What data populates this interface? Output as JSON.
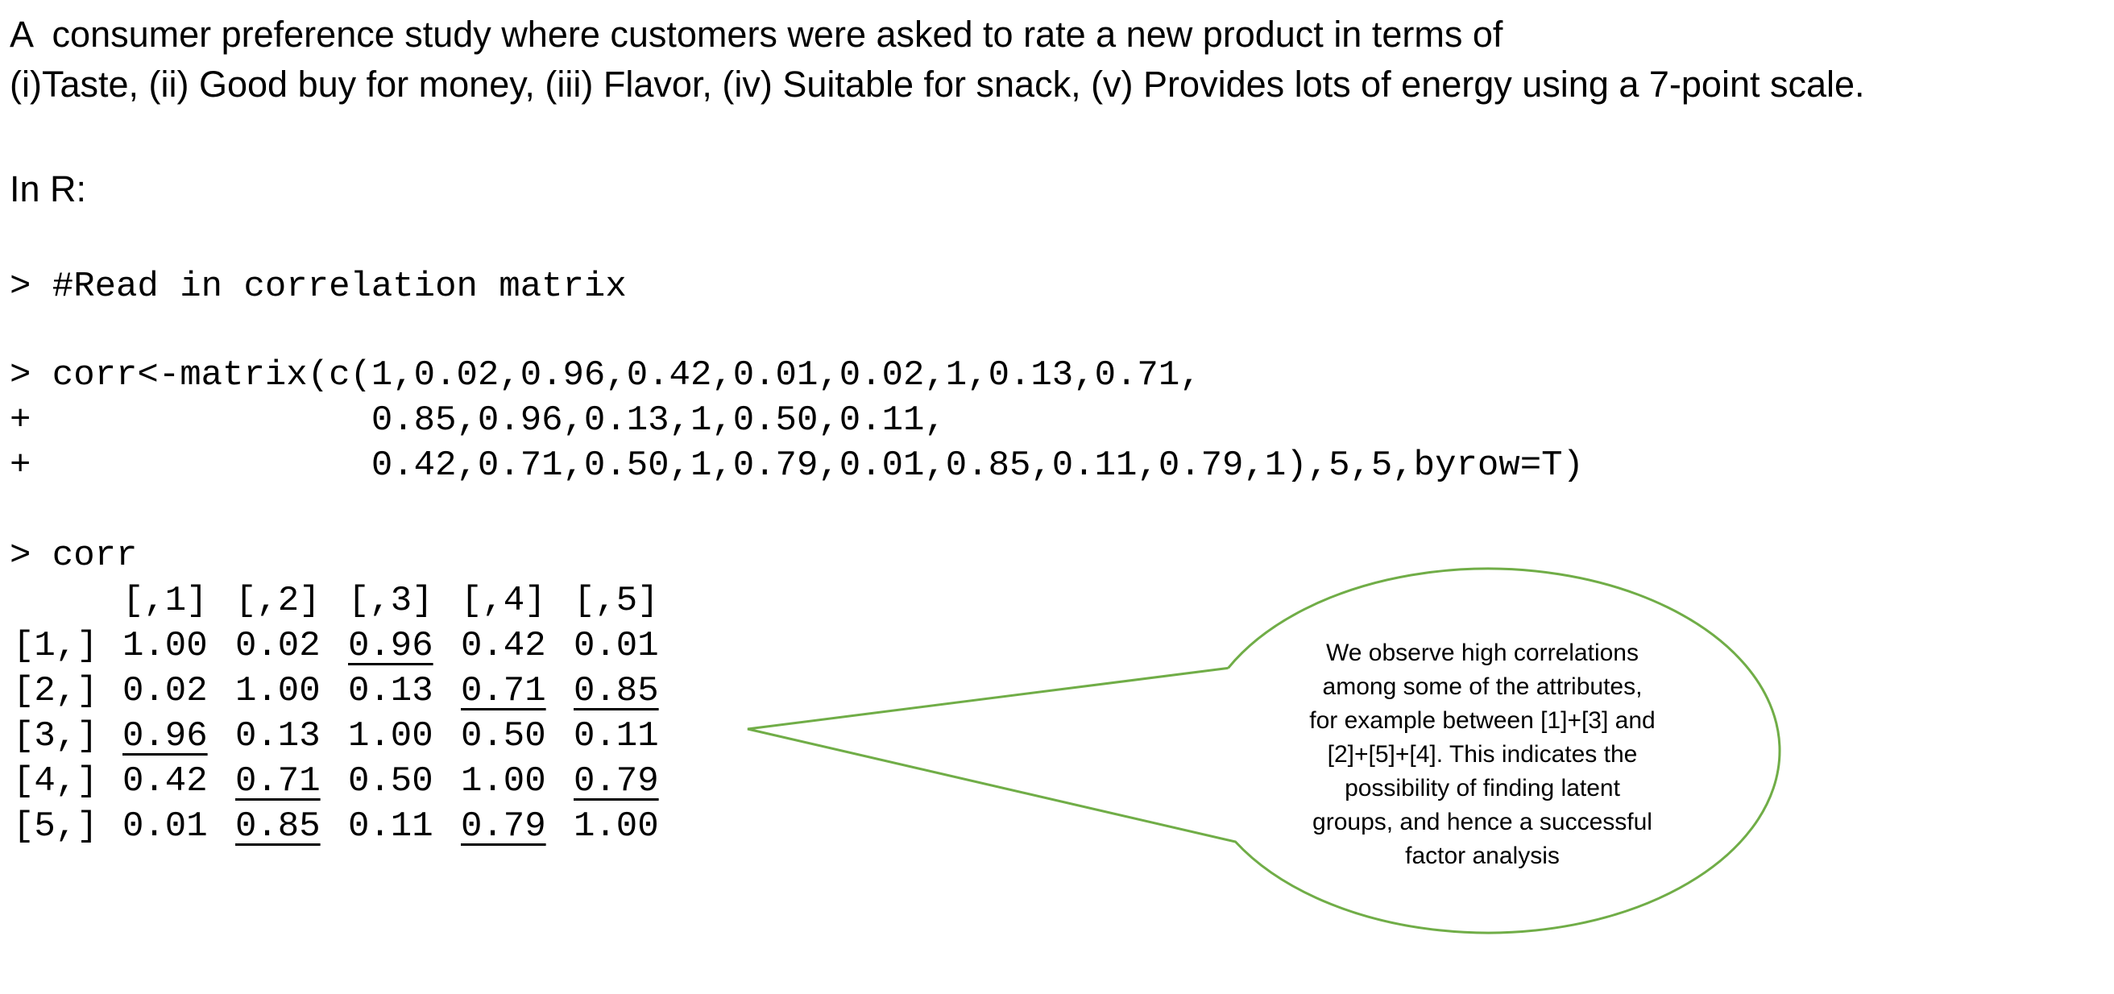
{
  "intro": {
    "line1": "A  consumer preference study where customers were asked to rate a new product in terms of",
    "line2": "(i)Taste, (ii) Good buy for money, (iii) Flavor, (iv) Suitable for snack, (v) Provides lots of energy using a 7-point scale."
  },
  "language_label": "In R:",
  "code": {
    "comment": "> #Read in correlation matrix",
    "cmd_line1": "> corr<-matrix(c(1,0.02,0.96,0.42,0.01,0.02,1,0.13,0.71,",
    "cmd_line2": "+                0.85,0.96,0.13,1,0.50,0.11,",
    "cmd_line3": "+                0.42,0.71,0.50,1,0.79,0.01,0.85,0.11,0.79,1),5,5,byrow=T)",
    "print_cmd": "> corr"
  },
  "matrix": {
    "col_headers": [
      "[,1]",
      "[,2]",
      "[,3]",
      "[,4]",
      "[,5]"
    ],
    "row_headers": [
      "[1,]",
      "[2,]",
      "[3,]",
      "[4,]",
      "[5,]"
    ],
    "values": [
      [
        "1.00",
        "0.02",
        "0.96",
        "0.42",
        "0.01"
      ],
      [
        "0.02",
        "1.00",
        "0.13",
        "0.71",
        "0.85"
      ],
      [
        "0.96",
        "0.13",
        "1.00",
        "0.50",
        "0.11"
      ],
      [
        "0.42",
        "0.71",
        "0.50",
        "1.00",
        "0.79"
      ],
      [
        "0.01",
        "0.85",
        "0.11",
        "0.79",
        "1.00"
      ]
    ],
    "underlined_cells": [
      [
        0,
        2
      ],
      [
        1,
        3
      ],
      [
        1,
        4
      ],
      [
        2,
        0
      ],
      [
        3,
        1
      ],
      [
        3,
        4
      ],
      [
        4,
        1
      ],
      [
        4,
        3
      ]
    ]
  },
  "callout": {
    "lines": [
      "We observe high correlations",
      "among some of the attributes,",
      "for example between [1]+[3] and",
      "[2]+[5]+[4]. This indicates the",
      "possibility of finding latent",
      "groups, and hence a successful",
      "factor analysis"
    ],
    "border_color": "#70AD47"
  }
}
